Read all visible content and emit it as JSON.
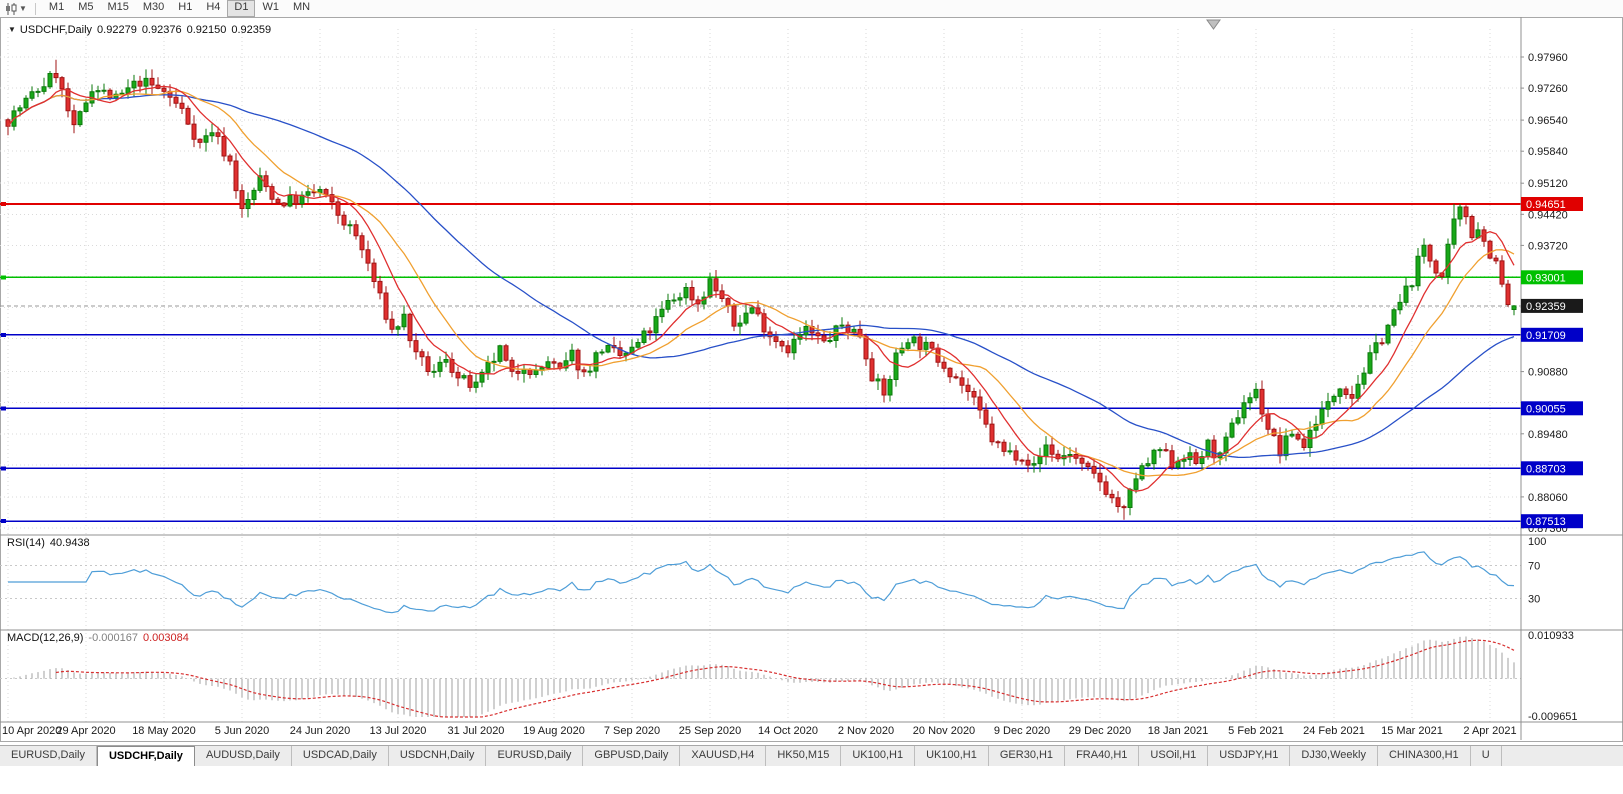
{
  "toolbar": {
    "chart_type_icon": "candlestick-chart-icon",
    "dropdown_icon": "chevron-down-icon",
    "timeframes": [
      "M1",
      "M5",
      "M15",
      "M30",
      "H1",
      "H4",
      "D1",
      "W1",
      "MN"
    ],
    "active_timeframe": "D1"
  },
  "header": {
    "collapse_icon": "triangle-down-icon",
    "symbol": "USDCHF,Daily",
    "open": "0.92279",
    "high": "0.92376",
    "low": "0.92150",
    "close": "0.92359"
  },
  "rsi_header": {
    "name": "RSI(14)",
    "value": "40.9438"
  },
  "macd_header": {
    "name": "MACD(12,26,9)",
    "value_main": "-0.000167",
    "value_signal": "0.003084"
  },
  "chart_data": {
    "type": "candlestick",
    "symbol": "USDCHF",
    "period": "Daily",
    "ylim": [
      0.8736,
      0.9796
    ],
    "price_axis_labels": [
      "0.97960",
      "0.97260",
      "0.96540",
      "0.95840",
      "0.95120",
      "0.94420",
      "0.93720",
      "0.90880",
      "0.89480",
      "0.88060",
      "0.87360"
    ],
    "grid_prices": [
      0.9796,
      0.9726,
      0.9654,
      0.9584,
      0.9512,
      0.9442,
      0.9372,
      0.9302,
      0.9232,
      0.9162,
      0.9088,
      0.9018,
      0.8948,
      0.8878,
      0.8806,
      0.8736
    ],
    "levels": [
      {
        "price": 0.94651,
        "label": "0.94651",
        "color": "#e00000"
      },
      {
        "price": 0.93001,
        "label": "0.93001",
        "color": "#00c000"
      },
      {
        "price": 0.91709,
        "label": "0.91709",
        "color": "#0000c8"
      },
      {
        "price": 0.90055,
        "label": "0.90055",
        "color": "#0000c8"
      },
      {
        "price": 0.88703,
        "label": "0.88703",
        "color": "#0000c8"
      },
      {
        "price": 0.87513,
        "label": "0.87513",
        "color": "#0000c8"
      }
    ],
    "current_price": {
      "value": 0.92359,
      "label": "0.92359",
      "tag_color": "#1a1a1a"
    },
    "ohlc": {
      "open": 0.92279,
      "high": 0.92376,
      "low": 0.9215,
      "close": 0.92359
    },
    "dates": [
      "10 Apr 2020",
      "29 Apr 2020",
      "18 May 2020",
      "5 Jun 2020",
      "24 Jun 2020",
      "13 Jul 2020",
      "31 Jul 2020",
      "19 Aug 2020",
      "7 Sep 2020",
      "25 Sep 2020",
      "14 Oct 2020",
      "2 Nov 2020",
      "20 Nov 2020",
      "9 Dec 2020",
      "29 Dec 2020",
      "18 Jan 2021",
      "5 Feb 2021",
      "24 Feb 2021",
      "15 Mar 2021",
      "2 Apr 2021"
    ],
    "candles_per_date_label": 13,
    "candle_count": 252,
    "seed": 7,
    "candle_colors": {
      "up": "#18a818",
      "up_border": "#0b7a0b",
      "down": "#e03030",
      "down_border": "#a01414"
    },
    "trend_anchors": [
      [
        0,
        0.9655
      ],
      [
        4,
        0.971
      ],
      [
        8,
        0.976
      ],
      [
        11,
        0.963
      ],
      [
        14,
        0.973
      ],
      [
        18,
        0.97
      ],
      [
        22,
        0.9742
      ],
      [
        26,
        0.9718
      ],
      [
        29,
        0.9676
      ],
      [
        32,
        0.96
      ],
      [
        34,
        0.9632
      ],
      [
        37,
        0.956
      ],
      [
        39,
        0.9448
      ],
      [
        42,
        0.952
      ],
      [
        45,
        0.9468
      ],
      [
        49,
        0.9478
      ],
      [
        52,
        0.9496
      ],
      [
        55,
        0.9442
      ],
      [
        58,
        0.9392
      ],
      [
        60,
        0.933
      ],
      [
        62,
        0.9252
      ],
      [
        64,
        0.918
      ],
      [
        66,
        0.921
      ],
      [
        68,
        0.912
      ],
      [
        71,
        0.9082
      ],
      [
        73,
        0.9122
      ],
      [
        75,
        0.9072
      ],
      [
        78,
        0.9052
      ],
      [
        80,
        0.9096
      ],
      [
        82,
        0.9136
      ],
      [
        84,
        0.9076
      ],
      [
        86,
        0.9106
      ],
      [
        88,
        0.9082
      ],
      [
        90,
        0.9112
      ],
      [
        92,
        0.9086
      ],
      [
        94,
        0.9126
      ],
      [
        96,
        0.9082
      ],
      [
        99,
        0.9142
      ],
      [
        102,
        0.9122
      ],
      [
        104,
        0.9136
      ],
      [
        107,
        0.9182
      ],
      [
        110,
        0.9242
      ],
      [
        113,
        0.9272
      ],
      [
        115,
        0.9242
      ],
      [
        117,
        0.9292
      ],
      [
        119,
        0.9252
      ],
      [
        121,
        0.9192
      ],
      [
        124,
        0.9232
      ],
      [
        127,
        0.9172
      ],
      [
        130,
        0.9142
      ],
      [
        133,
        0.9182
      ],
      [
        136,
        0.9152
      ],
      [
        139,
        0.9192
      ],
      [
        142,
        0.9172
      ],
      [
        144,
        0.9082
      ],
      [
        146,
        0.9032
      ],
      [
        148,
        0.9122
      ],
      [
        150,
        0.9166
      ],
      [
        153,
        0.9142
      ],
      [
        156,
        0.9106
      ],
      [
        158,
        0.9076
      ],
      [
        160,
        0.9042
      ],
      [
        162,
        0.8992
      ],
      [
        164,
        0.8936
      ],
      [
        166,
        0.8906
      ],
      [
        169,
        0.8902
      ],
      [
        171,
        0.8872
      ],
      [
        173,
        0.8922
      ],
      [
        175,
        0.8892
      ],
      [
        177,
        0.8906
      ],
      [
        179,
        0.8872
      ],
      [
        182,
        0.8842
      ],
      [
        184,
        0.8802
      ],
      [
        186,
        0.8772
      ],
      [
        188,
        0.8852
      ],
      [
        190,
        0.8882
      ],
      [
        192,
        0.8912
      ],
      [
        194,
        0.8882
      ],
      [
        196,
        0.8902
      ],
      [
        198,
        0.8882
      ],
      [
        200,
        0.8922
      ],
      [
        202,
        0.8892
      ],
      [
        204,
        0.8962
      ],
      [
        206,
        0.9022
      ],
      [
        208,
        0.9042
      ],
      [
        210,
        0.8962
      ],
      [
        212,
        0.8906
      ],
      [
        214,
        0.8952
      ],
      [
        216,
        0.8922
      ],
      [
        218,
        0.8982
      ],
      [
        220,
        0.9012
      ],
      [
        222,
        0.9062
      ],
      [
        224,
        0.9036
      ],
      [
        226,
        0.9092
      ],
      [
        228,
        0.9142
      ],
      [
        230,
        0.9192
      ],
      [
        232,
        0.9242
      ],
      [
        234,
        0.9296
      ],
      [
        236,
        0.9372
      ],
      [
        237,
        0.934
      ],
      [
        239,
        0.93
      ],
      [
        240,
        0.936
      ],
      [
        241,
        0.942
      ],
      [
        242,
        0.9448
      ],
      [
        243,
        0.944
      ],
      [
        244,
        0.94
      ],
      [
        245,
        0.9415
      ],
      [
        246,
        0.938
      ],
      [
        247,
        0.9355
      ],
      [
        248,
        0.933
      ],
      [
        249,
        0.928
      ],
      [
        250,
        0.924
      ],
      [
        251,
        0.92359
      ]
    ],
    "forced_wicks": [
      {
        "index": 8,
        "high": 0.979
      },
      {
        "index": 186,
        "low": 0.87545
      },
      {
        "index": 241,
        "high": 0.94651
      },
      {
        "index": 242,
        "high": 0.94651
      }
    ],
    "moving_averages": [
      {
        "period": 45,
        "color": "#2850c8"
      },
      {
        "period": 16,
        "color": "#f0a030"
      },
      {
        "period": 8,
        "color": "#e03030"
      }
    ],
    "rsi": {
      "period": 14,
      "color": "#4f9ed8",
      "axis_labels": [
        "100",
        "70",
        "30"
      ],
      "level_values": [
        100,
        70,
        30
      ],
      "value": 40.9438
    },
    "macd": {
      "fast": 12,
      "slow": 26,
      "signal_period": 9,
      "histogram_color": "#a0a0a0",
      "signal_color": "#d83030",
      "axis_top_label": "0.010933",
      "axis_top_value": 0.010933,
      "axis_bottom_label": "-0.009651",
      "axis_bottom_value": -0.009651,
      "value_main": -0.000167,
      "value_signal": 0.003084
    }
  },
  "tabs": [
    {
      "label": "EURUSD,Daily",
      "active": false
    },
    {
      "label": "USDCHF,Daily",
      "active": true
    },
    {
      "label": "AUDUSD,Daily",
      "active": false
    },
    {
      "label": "USDCAD,Daily",
      "active": false
    },
    {
      "label": "USDCNH,Daily",
      "active": false
    },
    {
      "label": "EURUSD,Daily",
      "active": false
    },
    {
      "label": "GBPUSD,Daily",
      "active": false
    },
    {
      "label": "XAUUSD,H4",
      "active": false
    },
    {
      "label": "HK50,M15",
      "active": false
    },
    {
      "label": "UK100,H1",
      "active": false
    },
    {
      "label": "UK100,H1",
      "active": false
    },
    {
      "label": "GER30,H1",
      "active": false
    },
    {
      "label": "FRA40,H1",
      "active": false
    },
    {
      "label": "USOil,H1",
      "active": false
    },
    {
      "label": "USDJPY,H1",
      "active": false
    },
    {
      "label": "DJ30,Weekly",
      "active": false
    },
    {
      "label": "CHINA300,H1",
      "active": false
    },
    {
      "label": "U",
      "active": false
    }
  ]
}
